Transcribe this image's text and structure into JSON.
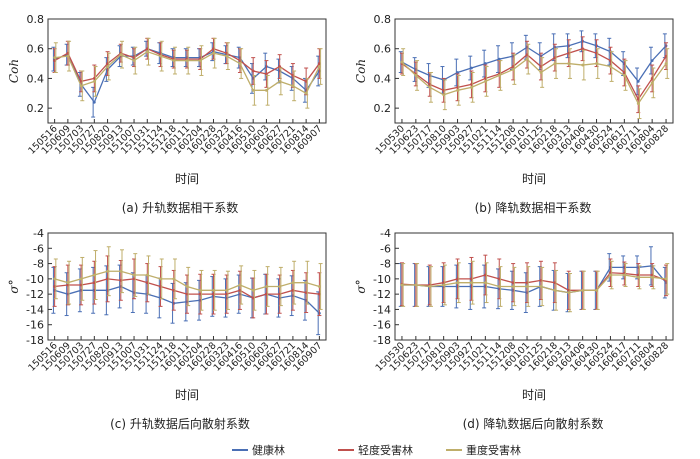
{
  "chart_data": [
    {
      "type": "line",
      "caption": "(a) 升轨数据相干系数",
      "xlabel": "时间",
      "ylabel": "Coh",
      "ylim": [
        0.1,
        0.8
      ],
      "yticks": [
        0.2,
        0.4,
        0.6,
        0.8
      ],
      "categories": [
        "150516",
        "150609",
        "150703",
        "150727",
        "150820",
        "150913",
        "151007",
        "151031",
        "151124",
        "151218",
        "160111",
        "160204",
        "160228",
        "160323",
        "160416",
        "160510",
        "160603",
        "160627",
        "160721",
        "160814",
        "160907"
      ],
      "series": [
        {
          "name": "健康林",
          "color": "#4a6fb5",
          "values": [
            0.53,
            0.56,
            0.36,
            0.24,
            0.46,
            0.55,
            0.55,
            0.6,
            0.57,
            0.54,
            0.54,
            0.54,
            0.58,
            0.56,
            0.54,
            0.4,
            0.48,
            0.45,
            0.4,
            0.32,
            0.45
          ],
          "err": [
            0.08,
            0.07,
            0.08,
            0.1,
            0.08,
            0.07,
            0.06,
            0.05,
            0.07,
            0.06,
            0.06,
            0.06,
            0.06,
            0.06,
            0.07,
            0.1,
            0.09,
            0.08,
            0.08,
            0.08,
            0.1
          ]
        },
        {
          "name": "轻度受害林",
          "color": "#c0504d",
          "values": [
            0.52,
            0.57,
            0.38,
            0.4,
            0.5,
            0.57,
            0.54,
            0.6,
            0.56,
            0.53,
            0.53,
            0.53,
            0.6,
            0.57,
            0.52,
            0.45,
            0.43,
            0.48,
            0.42,
            0.38,
            0.5
          ],
          "err": [
            0.08,
            0.08,
            0.07,
            0.09,
            0.08,
            0.06,
            0.06,
            0.07,
            0.08,
            0.06,
            0.06,
            0.07,
            0.07,
            0.07,
            0.08,
            0.09,
            0.09,
            0.08,
            0.08,
            0.09,
            0.1
          ]
        },
        {
          "name": "重度受害林",
          "color": "#bfae6a",
          "values": [
            0.54,
            0.55,
            0.35,
            0.38,
            0.48,
            0.56,
            0.52,
            0.58,
            0.55,
            0.52,
            0.52,
            0.52,
            0.57,
            0.55,
            0.5,
            0.32,
            0.32,
            0.38,
            0.35,
            0.3,
            0.48
          ],
          "err": [
            0.1,
            0.1,
            0.1,
            0.1,
            0.09,
            0.09,
            0.09,
            0.09,
            0.1,
            0.09,
            0.09,
            0.1,
            0.1,
            0.09,
            0.1,
            0.1,
            0.1,
            0.09,
            0.1,
            0.1,
            0.12
          ]
        }
      ]
    },
    {
      "type": "line",
      "caption": "(b) 降轨数据相干系数",
      "xlabel": "时间",
      "ylabel": "Coh",
      "ylim": [
        0.1,
        0.8
      ],
      "yticks": [
        0.2,
        0.4,
        0.6,
        0.8
      ],
      "categories": [
        "150530",
        "150623",
        "150717",
        "150810",
        "150903",
        "150927",
        "151021",
        "151114",
        "151208",
        "160101",
        "160125",
        "160218",
        "160313",
        "160406",
        "160430",
        "160524",
        "160617",
        "160711",
        "160804",
        "160828"
      ],
      "series": [
        {
          "name": "健康林",
          "color": "#4a6fb5",
          "values": [
            0.51,
            0.46,
            0.42,
            0.39,
            0.44,
            0.47,
            0.5,
            0.53,
            0.55,
            0.61,
            0.55,
            0.61,
            0.62,
            0.65,
            0.62,
            0.58,
            0.5,
            0.38,
            0.52,
            0.62
          ],
          "err": [
            0.07,
            0.08,
            0.08,
            0.09,
            0.09,
            0.08,
            0.09,
            0.09,
            0.09,
            0.08,
            0.09,
            0.09,
            0.08,
            0.07,
            0.08,
            0.09,
            0.08,
            0.09,
            0.09,
            0.08
          ]
        },
        {
          "name": "轻度受害林",
          "color": "#c0504d",
          "values": [
            0.5,
            0.43,
            0.36,
            0.32,
            0.34,
            0.36,
            0.4,
            0.43,
            0.48,
            0.56,
            0.48,
            0.54,
            0.57,
            0.6,
            0.57,
            0.52,
            0.44,
            0.26,
            0.4,
            0.55
          ],
          "err": [
            0.07,
            0.08,
            0.08,
            0.08,
            0.09,
            0.09,
            0.09,
            0.09,
            0.09,
            0.09,
            0.09,
            0.09,
            0.09,
            0.08,
            0.09,
            0.09,
            0.09,
            0.09,
            0.09,
            0.09
          ]
        },
        {
          "name": "重度受害林",
          "color": "#bfae6a",
          "values": [
            0.51,
            0.42,
            0.34,
            0.29,
            0.32,
            0.34,
            0.38,
            0.42,
            0.46,
            0.53,
            0.44,
            0.5,
            0.5,
            0.49,
            0.5,
            0.48,
            0.42,
            0.23,
            0.37,
            0.5
          ],
          "err": [
            0.09,
            0.1,
            0.1,
            0.1,
            0.1,
            0.1,
            0.1,
            0.1,
            0.1,
            0.1,
            0.1,
            0.1,
            0.1,
            0.1,
            0.1,
            0.1,
            0.1,
            0.1,
            0.1,
            0.1
          ]
        }
      ]
    },
    {
      "type": "line",
      "caption": "(c) 升轨数据后向散射系数",
      "xlabel": "时间",
      "ylabel": "σ°",
      "ylim": [
        -18,
        -4
      ],
      "yticks": [
        -18,
        -16,
        -14,
        -12,
        -10,
        -8,
        -6,
        -4
      ],
      "categories": [
        "150516",
        "150609",
        "150703",
        "150727",
        "150820",
        "150913",
        "151007",
        "151031",
        "151124",
        "151218",
        "160111",
        "160204",
        "160228",
        "160323",
        "160416",
        "160510",
        "160603",
        "160627",
        "160721",
        "160814",
        "160907"
      ],
      "series": [
        {
          "name": "健康林",
          "color": "#4a6fb5",
          "values": [
            -11.5,
            -12.0,
            -11.5,
            -11.5,
            -11.5,
            -11.0,
            -11.8,
            -12.0,
            -12.5,
            -13.2,
            -13.0,
            -12.8,
            -12.3,
            -12.5,
            -12.0,
            -12.5,
            -12.0,
            -12.5,
            -12.2,
            -12.8,
            -14.5
          ],
          "err": [
            3.0,
            2.8,
            2.8,
            3.0,
            3.2,
            2.8,
            2.6,
            2.5,
            2.6,
            2.6,
            2.5,
            2.6,
            2.6,
            2.5,
            2.5,
            2.6,
            2.6,
            2.5,
            2.6,
            2.6,
            2.8
          ]
        },
        {
          "name": "轻度受害林",
          "color": "#c0504d",
          "values": [
            -11.0,
            -10.8,
            -10.8,
            -10.5,
            -10.0,
            -10.2,
            -10.0,
            -10.5,
            -11.0,
            -11.5,
            -12.0,
            -12.0,
            -12.0,
            -12.0,
            -11.5,
            -12.5,
            -12.0,
            -12.0,
            -11.5,
            -11.8,
            -12.0
          ],
          "err": [
            2.6,
            2.6,
            2.6,
            2.8,
            3.0,
            2.6,
            2.6,
            2.5,
            2.6,
            2.6,
            2.5,
            2.6,
            2.6,
            2.5,
            2.5,
            2.6,
            2.6,
            2.5,
            2.6,
            2.6,
            2.8
          ]
        },
        {
          "name": "重度受害林",
          "color": "#bfae6a",
          "values": [
            -10.0,
            -10.5,
            -10.0,
            -9.5,
            -9.0,
            -9.0,
            -9.5,
            -9.5,
            -10.0,
            -10.0,
            -11.0,
            -11.5,
            -11.5,
            -11.5,
            -10.8,
            -11.5,
            -11.0,
            -11.0,
            -10.5,
            -10.5,
            -11.0
          ],
          "err": [
            2.6,
            2.8,
            2.8,
            3.2,
            3.2,
            2.8,
            2.8,
            2.5,
            2.6,
            2.6,
            2.5,
            2.6,
            2.6,
            2.5,
            2.5,
            2.6,
            2.6,
            2.5,
            2.8,
            2.8,
            3.0
          ]
        }
      ]
    },
    {
      "type": "line",
      "caption": "(d) 降轨数据后向散射系数",
      "xlabel": "时间",
      "ylabel": "σ°",
      "ylim": [
        -18,
        -4
      ],
      "yticks": [
        -18,
        -16,
        -14,
        -12,
        -10,
        -8,
        -6,
        -4
      ],
      "categories": [
        "150530",
        "150623",
        "150717",
        "150810",
        "150903",
        "150927",
        "151021",
        "151114",
        "151208",
        "160101",
        "160125",
        "160218",
        "160313",
        "160406",
        "160430",
        "160524",
        "160617",
        "160711",
        "160804",
        "160828"
      ],
      "series": [
        {
          "name": "健康林",
          "color": "#4a6fb5",
          "values": [
            -10.8,
            -10.8,
            -11.0,
            -11.0,
            -11.0,
            -11.0,
            -11.0,
            -11.3,
            -11.5,
            -11.8,
            -11.0,
            -11.5,
            -11.8,
            -11.5,
            -11.5,
            -8.5,
            -8.5,
            -8.5,
            -8.3,
            -10.5
          ],
          "err": [
            2.8,
            2.8,
            2.6,
            2.6,
            2.8,
            3.0,
            2.8,
            2.6,
            2.5,
            2.6,
            2.6,
            2.6,
            2.5,
            2.5,
            2.5,
            1.8,
            1.5,
            1.5,
            2.5,
            2.0
          ]
        },
        {
          "name": "轻度受害林",
          "color": "#c0504d",
          "values": [
            -10.7,
            -10.8,
            -10.8,
            -10.5,
            -10.0,
            -10.0,
            -9.5,
            -10.0,
            -10.5,
            -10.5,
            -10.2,
            -10.5,
            -11.5,
            -11.5,
            -11.5,
            -9.2,
            -9.3,
            -9.5,
            -9.5,
            -10.2
          ],
          "err": [
            2.8,
            2.8,
            2.6,
            2.6,
            2.6,
            2.8,
            2.6,
            2.6,
            2.5,
            2.6,
            2.5,
            2.6,
            2.5,
            2.5,
            2.5,
            1.8,
            1.5,
            1.5,
            1.5,
            2.0
          ]
        },
        {
          "name": "重度受害林",
          "color": "#bfae6a",
          "values": [
            -10.8,
            -10.8,
            -11.0,
            -10.8,
            -10.5,
            -10.5,
            -10.5,
            -11.0,
            -11.0,
            -11.0,
            -11.0,
            -11.5,
            -11.8,
            -11.5,
            -11.5,
            -9.5,
            -9.5,
            -9.8,
            -9.8,
            -10.0
          ],
          "err": [
            2.8,
            2.8,
            2.6,
            2.6,
            2.6,
            2.8,
            2.6,
            2.6,
            2.5,
            2.6,
            2.5,
            2.6,
            2.5,
            2.5,
            2.5,
            1.8,
            1.5,
            1.5,
            1.5,
            2.0
          ]
        }
      ]
    }
  ],
  "legend": [
    {
      "label": "健康林",
      "color": "#4a6fb5"
    },
    {
      "label": "轻度受害林",
      "color": "#c0504d"
    },
    {
      "label": "重度受害林",
      "color": "#bfae6a"
    }
  ]
}
